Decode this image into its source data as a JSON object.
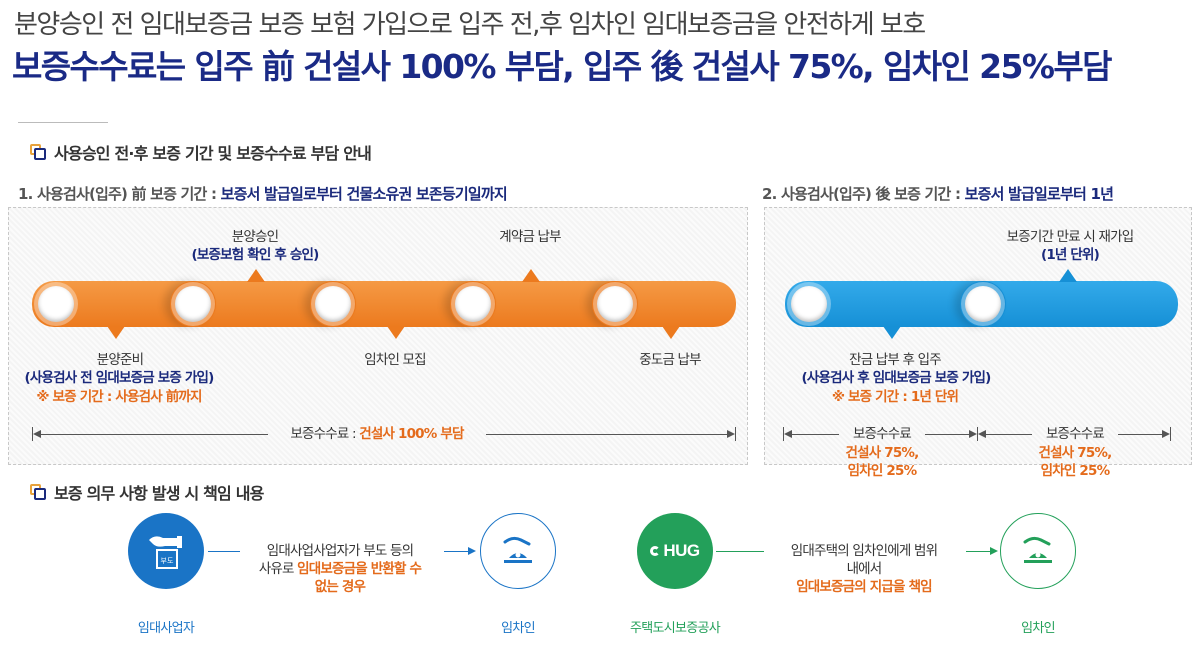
{
  "header": {
    "subtitle": "분양승인 전 임대보증금 보증 보험 가입으로 입주 전,후 임차인 임대보증금을 안전하게 보호",
    "headline": "보증수수료는 입주 前 건설사 100% 부담, 입주 後 건설사 75%, 임차인 25%부담"
  },
  "section1": {
    "title": "사용승인 전·후 보증 기간 및 보증수수료 부담 안내"
  },
  "period1": {
    "prefix": "1. 사용검사(입주) 前 보증 기간 : ",
    "highlight": "보증서 발급일로부터 건물소유권 보존등기일까지"
  },
  "period2": {
    "prefix": "2. 사용검사(입주) 後 보증 기간 : ",
    "highlight": "보증서 발급일로부터 1년"
  },
  "timeline1": {
    "top_labels": {
      "approval_line1": "분양승인",
      "approval_line2": "(보증보험 확인 후 승인)",
      "deposit": "계약금 납부"
    },
    "bottom_labels": {
      "prep_line1": "분양준비",
      "prep_line2": "(사용검사 전 임대보증금 보증 가입)",
      "prep_line3": "※ 보증 기간 : 사용검사 前까지",
      "tenant": "임차인 모집",
      "mid": "중도금 납부"
    },
    "fee_label": "보증수수료 : ",
    "fee_value": "건설사 100% 부담"
  },
  "timeline2": {
    "top_line1": "보증기간 만료 시 재가입",
    "top_line2": "(1년 단위)",
    "bottom_line1": "잔금 납부 후 입주",
    "bottom_line2": "(사용검사 후 임대보증금 보증 가입)",
    "bottom_line3": "※ 보증 기간 : 1년 단위",
    "fee_left_label": "보증수수료",
    "fee_left_value1": "건설사 75%,",
    "fee_left_value2": "임차인 25%",
    "fee_right_label": "보증수수료",
    "fee_right_value1": "건설사 75%,",
    "fee_right_value2": "임차인 25%"
  },
  "section2": {
    "title": "보증 의무 사항 발생 시 책임 내용"
  },
  "flow1": {
    "from_caption": "임대사업자",
    "desc_line1": "임대사업사업자가 부도 등의",
    "desc_line2_prefix": "사유로 ",
    "desc_line2_hl": "임대보증금을 반환할 수",
    "desc_line3_hl": "없는 경우",
    "to_caption": "임차인",
    "badge_text": "부도"
  },
  "flow2": {
    "from_caption": "주택도시보증공사",
    "logo_text": "HUG",
    "desc_line1": "임대주택의 임차인에게 범위",
    "desc_line2": "내에서",
    "desc_line3_hl": "임대보증금의 지급을 책임",
    "to_caption": "임차인"
  },
  "colors": {
    "navy": "#1b2a7c",
    "orange": "#f0842a",
    "blue": "#2196d9",
    "green": "#23a05a",
    "accent_text": "#e46b1c"
  }
}
